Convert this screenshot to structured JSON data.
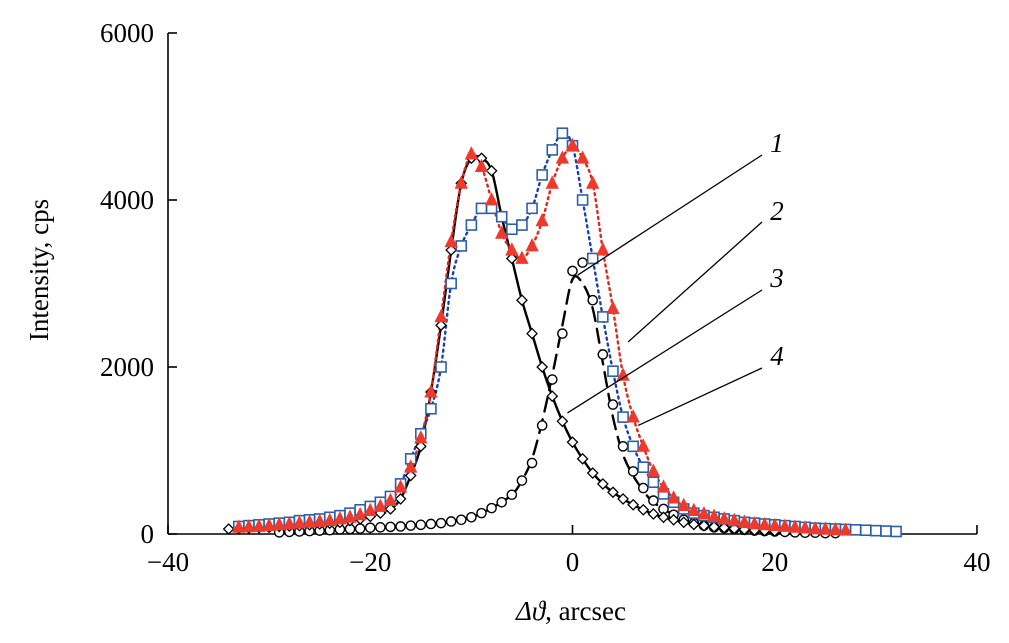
{
  "chart_data": {
    "type": "scatter",
    "title": "",
    "xlabel_symbol": "Δϑ",
    "xlabel_unit": ", arcsec",
    "ylabel": "Intensity, cps",
    "xlim": [
      -40,
      40
    ],
    "ylim": [
      0,
      6000
    ],
    "x_ticks": [
      -40,
      -20,
      0,
      20,
      40
    ],
    "x_tick_labels": [
      "−40",
      "−20",
      "0",
      "20",
      "40"
    ],
    "y_ticks": [
      0,
      2000,
      4000,
      6000
    ],
    "y_tick_labels": [
      "0",
      "2000",
      "4000",
      "6000"
    ],
    "grid": false,
    "series": [
      {
        "name": "1",
        "marker": "circle",
        "marker_fill": "#ffffff",
        "marker_stroke": "#000000",
        "line_style": "dashed",
        "line_color": "#000000",
        "x": [
          -29,
          -28,
          -27,
          -26,
          -25,
          -24,
          -23,
          -22,
          -21,
          -20,
          -19,
          -18,
          -17,
          -16,
          -15,
          -14,
          -13,
          -12,
          -11,
          -10,
          -9,
          -8,
          -7,
          -6,
          -5,
          -4,
          -3,
          -2,
          -1,
          0,
          1,
          2,
          3,
          4,
          5,
          6,
          7,
          8,
          9,
          10,
          11,
          12,
          13,
          14,
          15,
          16,
          17,
          18,
          19,
          20,
          21,
          22,
          23,
          24,
          25,
          26
        ],
        "y": [
          20,
          25,
          30,
          35,
          40,
          45,
          55,
          60,
          65,
          75,
          80,
          85,
          90,
          100,
          110,
          120,
          130,
          150,
          170,
          200,
          250,
          310,
          380,
          470,
          640,
          850,
          1300,
          1850,
          2400,
          3150,
          3250,
          2800,
          2150,
          1550,
          1050,
          750,
          550,
          400,
          300,
          230,
          170,
          130,
          100,
          80,
          70,
          60,
          50,
          40,
          35,
          30,
          25,
          20,
          15,
          15,
          10,
          10
        ],
        "fit_x": [
          -29,
          -26,
          -23,
          -20,
          -17,
          -14,
          -12,
          -10,
          -8,
          -6,
          -5,
          -4,
          -3,
          -2,
          -1,
          0,
          1,
          2,
          3,
          4,
          5,
          6,
          7,
          8,
          10,
          12,
          15,
          20,
          26
        ],
        "fit_y": [
          20,
          35,
          55,
          75,
          90,
          120,
          150,
          200,
          310,
          470,
          640,
          900,
          1350,
          1900,
          2500,
          3050,
          3000,
          2700,
          2050,
          1400,
          950,
          700,
          520,
          380,
          230,
          130,
          70,
          30,
          10
        ]
      },
      {
        "name": "2",
        "marker": "square",
        "marker_fill": "#ffffff",
        "marker_stroke": "#2d5fa8",
        "line_style": "dotted",
        "line_color": "#1a3fb0",
        "x": [
          -33,
          -32,
          -31,
          -30,
          -29,
          -28,
          -27,
          -26,
          -25,
          -24,
          -23,
          -22,
          -21,
          -20,
          -19,
          -18,
          -17,
          -16,
          -15,
          -14,
          -13,
          -12,
          -11,
          -10,
          -9,
          -8,
          -7,
          -6,
          -5,
          -4,
          -3,
          -2,
          -1,
          0,
          1,
          2,
          3,
          4,
          5,
          6,
          7,
          8,
          9,
          10,
          11,
          12,
          13,
          14,
          15,
          16,
          17,
          18,
          19,
          20,
          21,
          22,
          23,
          24,
          25,
          26,
          27,
          28,
          29,
          30,
          31,
          32
        ],
        "y": [
          90,
          100,
          110,
          120,
          130,
          140,
          160,
          170,
          180,
          200,
          220,
          250,
          290,
          330,
          380,
          450,
          600,
          900,
          1200,
          1500,
          2000,
          3000,
          3450,
          3700,
          3900,
          3900,
          3800,
          3650,
          3700,
          3900,
          4300,
          4600,
          4800,
          4650,
          4000,
          3300,
          2600,
          1950,
          1400,
          1050,
          800,
          620,
          480,
          380,
          300,
          250,
          220,
          200,
          180,
          160,
          140,
          130,
          120,
          110,
          100,
          90,
          80,
          70,
          65,
          60,
          55,
          50,
          45,
          40,
          35,
          30
        ]
      },
      {
        "name": "3",
        "marker": "diamond",
        "marker_fill": "#ffffff",
        "marker_stroke": "#000000",
        "line_style": "solid",
        "line_color": "#000000",
        "x": [
          -34,
          -33,
          -32,
          -31,
          -30,
          -29,
          -28,
          -27,
          -26,
          -25,
          -24,
          -23,
          -22,
          -21,
          -20,
          -19,
          -18,
          -17,
          -16,
          -15,
          -14,
          -13,
          -12,
          -11,
          -10,
          -9,
          -8,
          -7,
          -6,
          -5,
          -4,
          -3,
          -2,
          -1,
          0,
          1,
          2,
          3,
          4,
          5,
          6,
          7,
          8,
          9,
          10,
          11,
          12,
          13,
          14,
          15,
          16,
          17,
          18,
          19,
          20
        ],
        "y": [
          60,
          65,
          70,
          75,
          80,
          90,
          95,
          100,
          110,
          120,
          130,
          140,
          160,
          180,
          210,
          250,
          300,
          420,
          700,
          1050,
          1700,
          2500,
          3400,
          4200,
          4500,
          4500,
          4350,
          3800,
          3300,
          2800,
          2400,
          2000,
          1650,
          1350,
          1100,
          900,
          730,
          600,
          500,
          420,
          350,
          290,
          240,
          200,
          170,
          140,
          115,
          100,
          85,
          75,
          65,
          55,
          45,
          40,
          35
        ]
      },
      {
        "name": "4",
        "marker": "triangle",
        "marker_fill": "#ee3a2c",
        "marker_stroke": "#ee3a2c",
        "line_style": "dotted",
        "line_color": "#e0251b",
        "x": [
          -33,
          -32,
          -31,
          -30,
          -29,
          -28,
          -27,
          -26,
          -25,
          -24,
          -23,
          -22,
          -21,
          -20,
          -19,
          -18,
          -17,
          -16,
          -15,
          -14,
          -13,
          -12,
          -11,
          -10,
          -9,
          -8,
          -7,
          -6,
          -5,
          -4,
          -3,
          -2,
          -1,
          0,
          1,
          2,
          3,
          4,
          5,
          6,
          7,
          8,
          9,
          10,
          11,
          12,
          13,
          14,
          15,
          16,
          17,
          18,
          19,
          20,
          21,
          22,
          23,
          24,
          25,
          26,
          27
        ],
        "y": [
          80,
          85,
          90,
          100,
          110,
          120,
          130,
          140,
          150,
          160,
          180,
          200,
          230,
          280,
          330,
          400,
          560,
          800,
          1150,
          1700,
          2600,
          3500,
          4200,
          4550,
          4400,
          4000,
          3600,
          3400,
          3300,
          3450,
          3750,
          4200,
          4500,
          4650,
          4500,
          4200,
          3400,
          2700,
          1900,
          1400,
          1050,
          750,
          560,
          430,
          340,
          280,
          240,
          210,
          180,
          160,
          140,
          120,
          110,
          100,
          90,
          80,
          70,
          60,
          55,
          50,
          45
        ]
      }
    ],
    "annotations": [
      {
        "label": "1",
        "target": [
          0.5,
          3100
        ],
        "label_anchor": [
          1010,
          1210
        ]
      },
      {
        "label": "2",
        "target": [
          5.5,
          2300
        ],
        "label_anchor": [
          1010,
          1210
        ]
      },
      {
        "label": "3",
        "target": [
          -0.5,
          1450
        ],
        "label_anchor": [
          1010,
          1210
        ]
      },
      {
        "label": "4",
        "target": [
          6.5,
          1300
        ],
        "label_anchor": [
          1010,
          1210
        ]
      }
    ]
  }
}
